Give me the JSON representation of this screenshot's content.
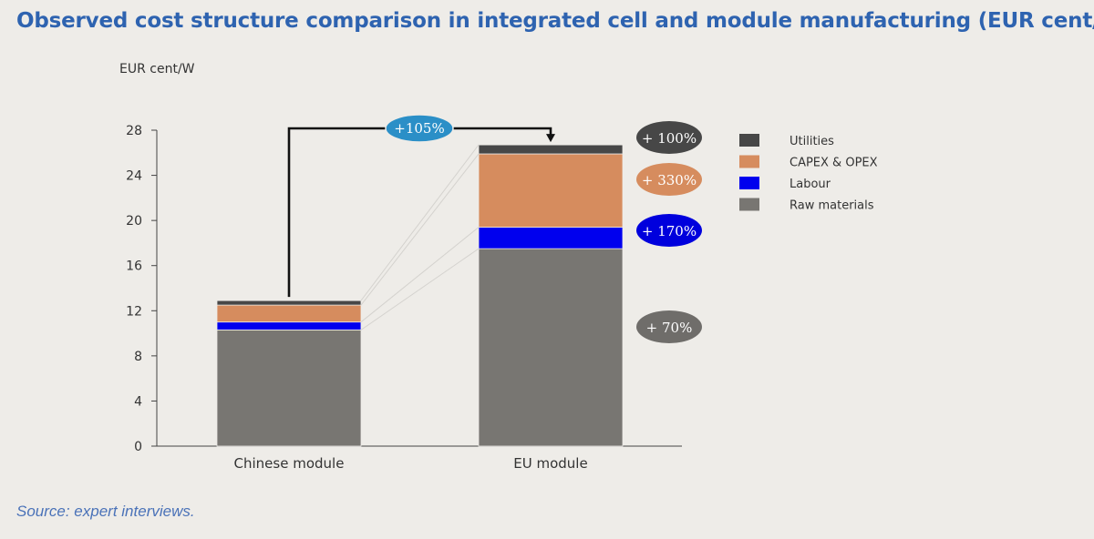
{
  "title": "Observed cost structure comparison in integrated cell and module manufacturing (EUR cent/W)",
  "source": "Source: expert interviews.",
  "chart_data": {
    "type": "bar",
    "stacked": true,
    "title": "Observed cost structure comparison in integrated cell and module manufacturing (EUR cent/W)",
    "ylabel": "EUR cent/W",
    "xlabel": "",
    "ylim": [
      0,
      28
    ],
    "yticks": [
      0,
      4,
      8,
      12,
      16,
      20,
      24,
      28
    ],
    "categories": [
      "Chinese module",
      "EU module"
    ],
    "series": [
      {
        "name": "Raw materials",
        "color": "#787672",
        "values": [
          10.3,
          17.5
        ]
      },
      {
        "name": "Labour",
        "color": "#0000ee",
        "values": [
          0.7,
          1.9
        ]
      },
      {
        "name": "CAPEX & OPEX",
        "color": "#d68c5e",
        "values": [
          1.5,
          6.5
        ]
      },
      {
        "name": "Utilities",
        "color": "#474747",
        "values": [
          0.4,
          0.8
        ]
      }
    ],
    "legend": [
      "Utilities",
      "CAPEX & OPEX",
      "Labour",
      "Raw materials"
    ],
    "legend_position": "right",
    "annotations": {
      "total_change": {
        "text": "+105%",
        "color": "#2b8fc7"
      },
      "segment_changes": [
        {
          "series": "Utilities",
          "text": "+ 100%",
          "color": "#474747"
        },
        {
          "series": "CAPEX & OPEX",
          "text": "+ 330%",
          "color": "#d68c5e"
        },
        {
          "series": "Labour",
          "text": "+ 170%",
          "color": "#0000dd"
        },
        {
          "series": "Raw materials",
          "text": "+ 70%",
          "color": "#6f6d6a"
        }
      ]
    },
    "grid": false
  }
}
